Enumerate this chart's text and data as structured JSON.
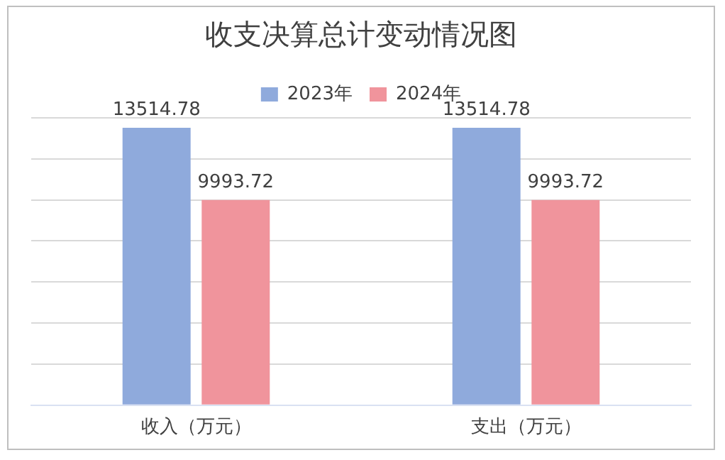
{
  "chart_data": {
    "type": "bar",
    "title": "收支决算总计变动情况图",
    "categories": [
      "收入（万元）",
      "支出（万元）"
    ],
    "series": [
      {
        "name": "2023年",
        "color": "#8faadc",
        "values": [
          13514.78,
          13514.78
        ]
      },
      {
        "name": "2024年",
        "color": "#f0949c",
        "values": [
          9993.72,
          9993.72
        ]
      }
    ],
    "ylim": [
      0,
      14000
    ],
    "yticks": [
      {
        "value": 0,
        "label": null
      },
      {
        "value": 2000,
        "label": null
      },
      {
        "value": 4000,
        "label": null
      },
      {
        "value": 6000,
        "label": null
      },
      {
        "value": 8000,
        "label": null
      },
      {
        "value": 10000,
        "label": null
      },
      {
        "value": 12000,
        "label": null
      },
      {
        "value": 14000,
        "label": null
      }
    ],
    "grid": "y",
    "legend": "top",
    "data_labels": true,
    "tick_labels": "x"
  }
}
